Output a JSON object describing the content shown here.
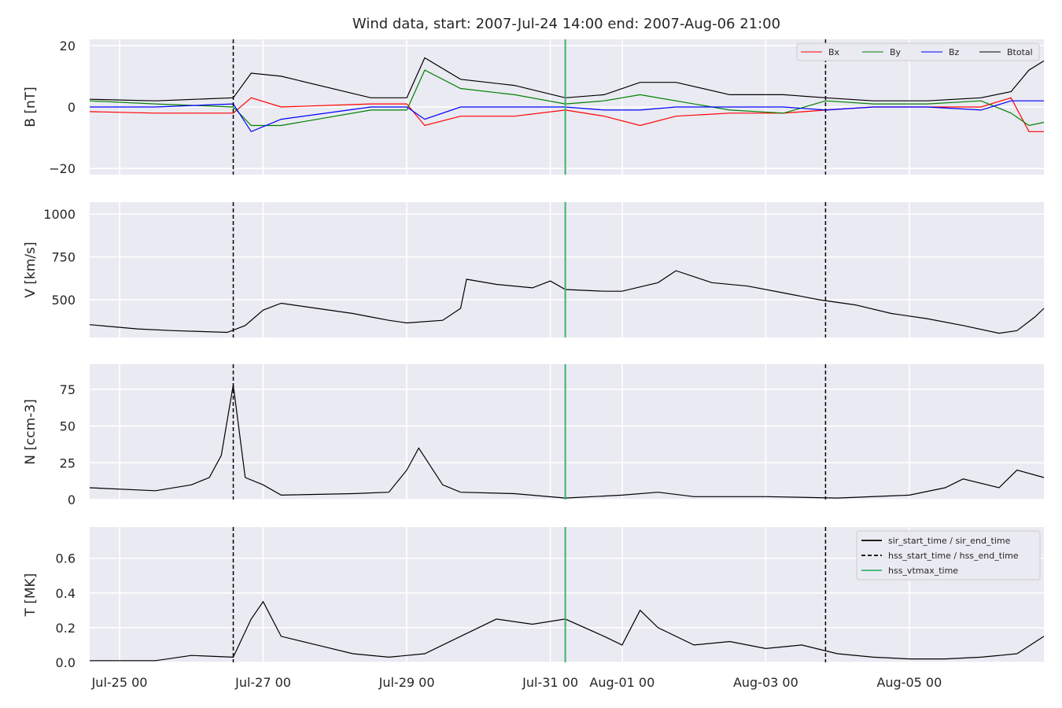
{
  "chart_data": {
    "type": "line",
    "title": "Wind data, start: 2007-Jul-24 14:00  end: 2007-Aug-06 21:00",
    "x_range": [
      "2007-07-24 14:00",
      "2007-08-06 21:00"
    ],
    "x_ticks": [
      "Jul-25 00",
      "Jul-27 00",
      "Jul-29 00",
      "Jul-31 00",
      "Aug-01 00",
      "Aug-03 00",
      "Aug-05 00"
    ],
    "x_tick_dates": [
      "2007-07-25 00:00",
      "2007-07-27 00:00",
      "2007-07-29 00:00",
      "2007-07-31 00:00",
      "2007-08-01 00:00",
      "2007-08-03 00:00",
      "2007-08-05 00:00"
    ],
    "grid": true,
    "event_lines": [
      {
        "label": "hss_start_time / hss_end_time",
        "style": "dashed",
        "color": "#000000",
        "times": [
          "2007-07-26 14:00",
          "2007-08-03 20:00"
        ]
      },
      {
        "label": "hss_vtmax_time",
        "style": "solid",
        "color": "#3cb371",
        "times": [
          "2007-07-31 05:00"
        ]
      }
    ],
    "panels": [
      {
        "ylabel": "B [nT]",
        "ylim": [
          -22,
          22
        ],
        "yticks": [
          20,
          0,
          -20
        ],
        "ytick_labels": [
          "20",
          "0",
          "−20"
        ],
        "legend_placement": "top-right",
        "legend": [
          "Bx",
          "By",
          "Bz",
          "Btotal"
        ],
        "series": [
          {
            "name": "Bx",
            "color": "#ff0000",
            "x": [
              "2007-07-24 14:00",
              "2007-07-25 12:00",
              "2007-07-26 14:00",
              "2007-07-26 20:00",
              "2007-07-27 06:00",
              "2007-07-28 12:00",
              "2007-07-29 00:00",
              "2007-07-29 06:00",
              "2007-07-29 18:00",
              "2007-07-30 12:00",
              "2007-07-31 05:00",
              "2007-07-31 18:00",
              "2007-08-01 06:00",
              "2007-08-01 18:00",
              "2007-08-02 12:00",
              "2007-08-03 06:00",
              "2007-08-03 20:00",
              "2007-08-04 12:00",
              "2007-08-05 06:00",
              "2007-08-06 00:00",
              "2007-08-06 10:00",
              "2007-08-06 16:00",
              "2007-08-06 21:00"
            ],
            "values": [
              -1.5,
              -2,
              -2,
              3,
              0,
              1,
              1,
              -6,
              -3,
              -3,
              -1,
              -3,
              -6,
              -3,
              -2,
              -2,
              -1,
              0,
              0,
              0,
              3,
              -8,
              -8
            ]
          },
          {
            "name": "By",
            "color": "#008000",
            "x": [
              "2007-07-24 14:00",
              "2007-07-25 12:00",
              "2007-07-26 14:00",
              "2007-07-26 20:00",
              "2007-07-27 06:00",
              "2007-07-28 12:00",
              "2007-07-29 00:00",
              "2007-07-29 06:00",
              "2007-07-29 18:00",
              "2007-07-30 12:00",
              "2007-07-31 05:00",
              "2007-07-31 18:00",
              "2007-08-01 06:00",
              "2007-08-01 18:00",
              "2007-08-02 12:00",
              "2007-08-03 06:00",
              "2007-08-03 20:00",
              "2007-08-04 12:00",
              "2007-08-05 06:00",
              "2007-08-06 00:00",
              "2007-08-06 10:00",
              "2007-08-06 16:00",
              "2007-08-06 21:00"
            ],
            "values": [
              2,
              1,
              0,
              -6,
              -6,
              -1,
              -1,
              12,
              6,
              4,
              1,
              2,
              4,
              2,
              -1,
              -2,
              2,
              1,
              1,
              2,
              -2,
              -6,
              -5
            ]
          },
          {
            "name": "Bz",
            "color": "#0000ff",
            "x": [
              "2007-07-24 14:00",
              "2007-07-25 12:00",
              "2007-07-26 14:00",
              "2007-07-26 20:00",
              "2007-07-27 06:00",
              "2007-07-28 12:00",
              "2007-07-29 00:00",
              "2007-07-29 06:00",
              "2007-07-29 18:00",
              "2007-07-30 12:00",
              "2007-07-31 05:00",
              "2007-07-31 18:00",
              "2007-08-01 06:00",
              "2007-08-01 18:00",
              "2007-08-02 12:00",
              "2007-08-03 06:00",
              "2007-08-03 20:00",
              "2007-08-04 12:00",
              "2007-08-05 06:00",
              "2007-08-06 00:00",
              "2007-08-06 10:00",
              "2007-08-06 16:00",
              "2007-08-06 21:00"
            ],
            "values": [
              0,
              0,
              1,
              -8,
              -4,
              0,
              0,
              -4,
              0,
              0,
              0,
              -1,
              -1,
              0,
              0,
              0,
              -1,
              0,
              0,
              -1,
              2,
              2,
              2
            ]
          },
          {
            "name": "Btotal",
            "color": "#000000",
            "x": [
              "2007-07-24 14:00",
              "2007-07-25 12:00",
              "2007-07-26 14:00",
              "2007-07-26 20:00",
              "2007-07-27 06:00",
              "2007-07-28 12:00",
              "2007-07-29 00:00",
              "2007-07-29 06:00",
              "2007-07-29 18:00",
              "2007-07-30 12:00",
              "2007-07-31 05:00",
              "2007-07-31 18:00",
              "2007-08-01 06:00",
              "2007-08-01 18:00",
              "2007-08-02 12:00",
              "2007-08-03 06:00",
              "2007-08-03 20:00",
              "2007-08-04 12:00",
              "2007-08-05 06:00",
              "2007-08-06 00:00",
              "2007-08-06 10:00",
              "2007-08-06 16:00",
              "2007-08-06 21:00"
            ],
            "values": [
              2.5,
              2,
              3,
              11,
              10,
              3,
              3,
              16,
              9,
              7,
              3,
              4,
              8,
              8,
              4,
              4,
              3,
              2,
              2,
              3,
              5,
              12,
              15
            ]
          }
        ]
      },
      {
        "ylabel": "V [km/s]",
        "ylim": [
          280,
          1070
        ],
        "yticks": [
          1000,
          750,
          500
        ],
        "ytick_labels": [
          "1000",
          "750",
          "500"
        ],
        "series": [
          {
            "name": "V",
            "color": "#000000",
            "x": [
              "2007-07-24 14:00",
              "2007-07-25 06:00",
              "2007-07-25 18:00",
              "2007-07-26 12:00",
              "2007-07-26 18:00",
              "2007-07-27 00:00",
              "2007-07-27 06:00",
              "2007-07-27 18:00",
              "2007-07-28 06:00",
              "2007-07-28 12:00",
              "2007-07-28 18:00",
              "2007-07-29 00:00",
              "2007-07-29 12:00",
              "2007-07-29 18:00",
              "2007-07-29 20:00",
              "2007-07-30 06:00",
              "2007-07-30 18:00",
              "2007-07-31 00:00",
              "2007-07-31 05:00",
              "2007-07-31 18:00",
              "2007-08-01 00:00",
              "2007-08-01 12:00",
              "2007-08-01 18:00",
              "2007-08-02 06:00",
              "2007-08-02 18:00",
              "2007-08-03 06:00",
              "2007-08-03 18:00",
              "2007-08-04 06:00",
              "2007-08-04 18:00",
              "2007-08-05 06:00",
              "2007-08-05 18:00",
              "2007-08-06 06:00",
              "2007-08-06 12:00",
              "2007-08-06 18:00",
              "2007-08-06 21:00"
            ],
            "values": [
              355,
              330,
              320,
              310,
              350,
              440,
              480,
              450,
              420,
              400,
              380,
              365,
              380,
              450,
              620,
              590,
              570,
              610,
              560,
              550,
              550,
              600,
              670,
              600,
              580,
              540,
              500,
              470,
              420,
              390,
              350,
              305,
              320,
              400,
              450
            ]
          }
        ]
      },
      {
        "ylabel": "N [ccm-3]",
        "ylim": [
          0,
          92
        ],
        "yticks": [
          75,
          50,
          25,
          0
        ],
        "ytick_labels": [
          "75",
          "50",
          "25",
          "0"
        ],
        "series": [
          {
            "name": "N",
            "color": "#000000",
            "x": [
              "2007-07-24 14:00",
              "2007-07-25 12:00",
              "2007-07-26 00:00",
              "2007-07-26 06:00",
              "2007-07-26 10:00",
              "2007-07-26 14:00",
              "2007-07-26 18:00",
              "2007-07-27 00:00",
              "2007-07-27 06:00",
              "2007-07-28 06:00",
              "2007-07-28 18:00",
              "2007-07-29 00:00",
              "2007-07-29 04:00",
              "2007-07-29 12:00",
              "2007-07-29 18:00",
              "2007-07-30 12:00",
              "2007-07-31 05:00",
              "2007-08-01 00:00",
              "2007-08-01 12:00",
              "2007-08-02 00:00",
              "2007-08-03 00:00",
              "2007-08-04 00:00",
              "2007-08-05 00:00",
              "2007-08-05 12:00",
              "2007-08-05 18:00",
              "2007-08-06 06:00",
              "2007-08-06 12:00",
              "2007-08-06 21:00"
            ],
            "values": [
              8,
              6,
              10,
              15,
              30,
              78,
              15,
              10,
              3,
              4,
              5,
              20,
              35,
              10,
              5,
              4,
              1,
              3,
              5,
              2,
              2,
              1,
              3,
              8,
              14,
              8,
              20,
              15
            ]
          }
        ]
      },
      {
        "ylabel": "T [MK]",
        "ylim": [
          0,
          0.78
        ],
        "yticks": [
          0.6,
          0.4,
          0.2,
          0.0
        ],
        "ytick_labels": [
          "0.6",
          "0.4",
          "0.2",
          "0.0"
        ],
        "legend_placement": "top-right",
        "legend": [
          "sir_start_time / sir_end_time",
          "hss_start_time / hss_end_time",
          "hss_vtmax_time"
        ],
        "series": [
          {
            "name": "T",
            "color": "#000000",
            "x": [
              "2007-07-24 14:00",
              "2007-07-25 12:00",
              "2007-07-26 00:00",
              "2007-07-26 14:00",
              "2007-07-26 20:00",
              "2007-07-27 00:00",
              "2007-07-27 06:00",
              "2007-07-27 18:00",
              "2007-07-28 06:00",
              "2007-07-28 18:00",
              "2007-07-29 06:00",
              "2007-07-29 18:00",
              "2007-07-30 06:00",
              "2007-07-30 18:00",
              "2007-07-31 05:00",
              "2007-07-31 18:00",
              "2007-08-01 00:00",
              "2007-08-01 06:00",
              "2007-08-01 12:00",
              "2007-08-02 00:00",
              "2007-08-02 12:00",
              "2007-08-03 00:00",
              "2007-08-03 12:00",
              "2007-08-04 00:00",
              "2007-08-04 12:00",
              "2007-08-05 00:00",
              "2007-08-05 12:00",
              "2007-08-06 00:00",
              "2007-08-06 12:00",
              "2007-08-06 21:00"
            ],
            "values": [
              0.01,
              0.01,
              0.04,
              0.03,
              0.25,
              0.35,
              0.15,
              0.1,
              0.05,
              0.03,
              0.05,
              0.15,
              0.25,
              0.22,
              0.25,
              0.15,
              0.1,
              0.3,
              0.2,
              0.1,
              0.12,
              0.08,
              0.1,
              0.05,
              0.03,
              0.02,
              0.02,
              0.03,
              0.05,
              0.15
            ]
          }
        ]
      }
    ]
  }
}
